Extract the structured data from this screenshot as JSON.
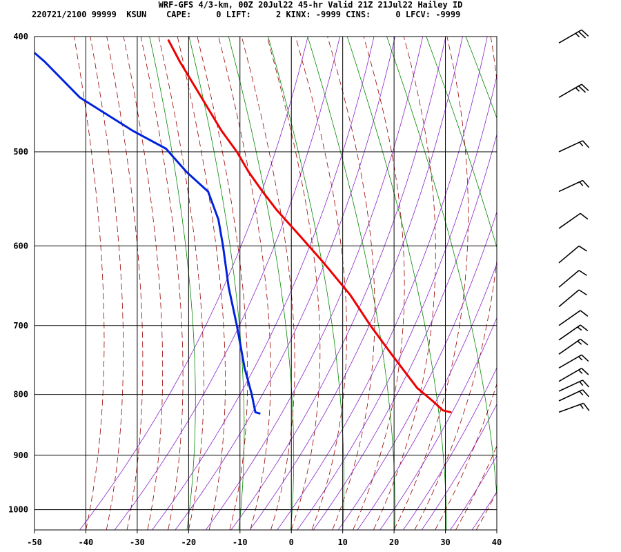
{
  "header": {
    "line1": "WRF-GFS 4/3-km, 00Z 20Jul22 45-hr Valid 21Z 21Jul22 Hailey ID",
    "line2": "220721/2100 99999  KSUN    CAPE:     0 LIFT:     2 KINX: -9999 CINS:     0 LFCV: -9999"
  },
  "chart_data": {
    "type": "line",
    "title": "WRF-GFS 4/3-km, 00Z 20Jul22 45-hr Valid 21Z 21Jul22 Hailey ID",
    "xlabel": "",
    "ylabel": "",
    "x_ticks": [
      "-50",
      "-40",
      "-30",
      "-20",
      "-10",
      "0",
      "10",
      "20",
      "30",
      "40"
    ],
    "y_ticks": [
      "400",
      "500",
      "600",
      "700",
      "800",
      "900",
      "1000"
    ],
    "xlim": [
      -50,
      40
    ],
    "ylim_hPa": [
      1040,
      400
    ],
    "skew_deg_per_100hPa": -8.3,
    "grid": true,
    "colors": {
      "temperature": "#ee0000",
      "dewpoint": "#0022dd",
      "dry_adiabat": "#008800",
      "moist_adiabat": "#990000",
      "mixing_ratio": "#8822cc",
      "grid": "#000000"
    },
    "series": [
      {
        "key": "temperature",
        "color": "#ee0000",
        "points": [
          {
            "p": 828,
            "t": 31.0
          },
          {
            "p": 825,
            "t": 29.5
          },
          {
            "p": 810,
            "t": 27.5
          },
          {
            "p": 790,
            "t": 24.5
          },
          {
            "p": 740,
            "t": 19.5
          },
          {
            "p": 700,
            "t": 15.4
          },
          {
            "p": 660,
            "t": 11.5
          },
          {
            "p": 620,
            "t": 6.3
          },
          {
            "p": 590,
            "t": 1.9
          },
          {
            "p": 560,
            "t": -2.8
          },
          {
            "p": 540,
            "t": -5.6
          },
          {
            "p": 520,
            "t": -8.3
          },
          {
            "p": 500,
            "t": -10.6
          },
          {
            "p": 480,
            "t": -13.6
          },
          {
            "p": 450,
            "t": -17.5
          },
          {
            "p": 420,
            "t": -21.7
          },
          {
            "p": 403,
            "t": -23.9
          }
        ]
      },
      {
        "key": "dewpoint",
        "color": "#0022dd",
        "points": [
          {
            "p": 830,
            "t": -6.2
          },
          {
            "p": 828,
            "t": -7.0
          },
          {
            "p": 800,
            "t": -7.7
          },
          {
            "p": 760,
            "t": -9.1
          },
          {
            "p": 700,
            "t": -10.6
          },
          {
            "p": 650,
            "t": -12.2
          },
          {
            "p": 600,
            "t": -13.3
          },
          {
            "p": 570,
            "t": -14.2
          },
          {
            "p": 540,
            "t": -16.2
          },
          {
            "p": 520,
            "t": -20.4
          },
          {
            "p": 497,
            "t": -24.4
          },
          {
            "p": 480,
            "t": -30.9
          },
          {
            "p": 450,
            "t": -41.2
          },
          {
            "p": 420,
            "t": -48.0
          },
          {
            "p": 404,
            "t": -52.5
          }
        ]
      }
    ],
    "wind_barbs": [
      {
        "p": 405,
        "dir": 240,
        "kt": 25
      },
      {
        "p": 450,
        "dir": 240,
        "kt": 25
      },
      {
        "p": 500,
        "dir": 245,
        "kt": 15
      },
      {
        "p": 540,
        "dir": 245,
        "kt": 15
      },
      {
        "p": 580,
        "dir": 235,
        "kt": 10
      },
      {
        "p": 620,
        "dir": 230,
        "kt": 10
      },
      {
        "p": 650,
        "dir": 230,
        "kt": 10
      },
      {
        "p": 675,
        "dir": 230,
        "kt": 10
      },
      {
        "p": 700,
        "dir": 235,
        "kt": 10
      },
      {
        "p": 720,
        "dir": 235,
        "kt": 15
      },
      {
        "p": 740,
        "dir": 235,
        "kt": 15
      },
      {
        "p": 760,
        "dir": 240,
        "kt": 15
      },
      {
        "p": 780,
        "dir": 240,
        "kt": 15
      },
      {
        "p": 795,
        "dir": 245,
        "kt": 15
      },
      {
        "p": 810,
        "dir": 245,
        "kt": 15
      },
      {
        "p": 828,
        "dir": 250,
        "kt": 15
      }
    ]
  }
}
